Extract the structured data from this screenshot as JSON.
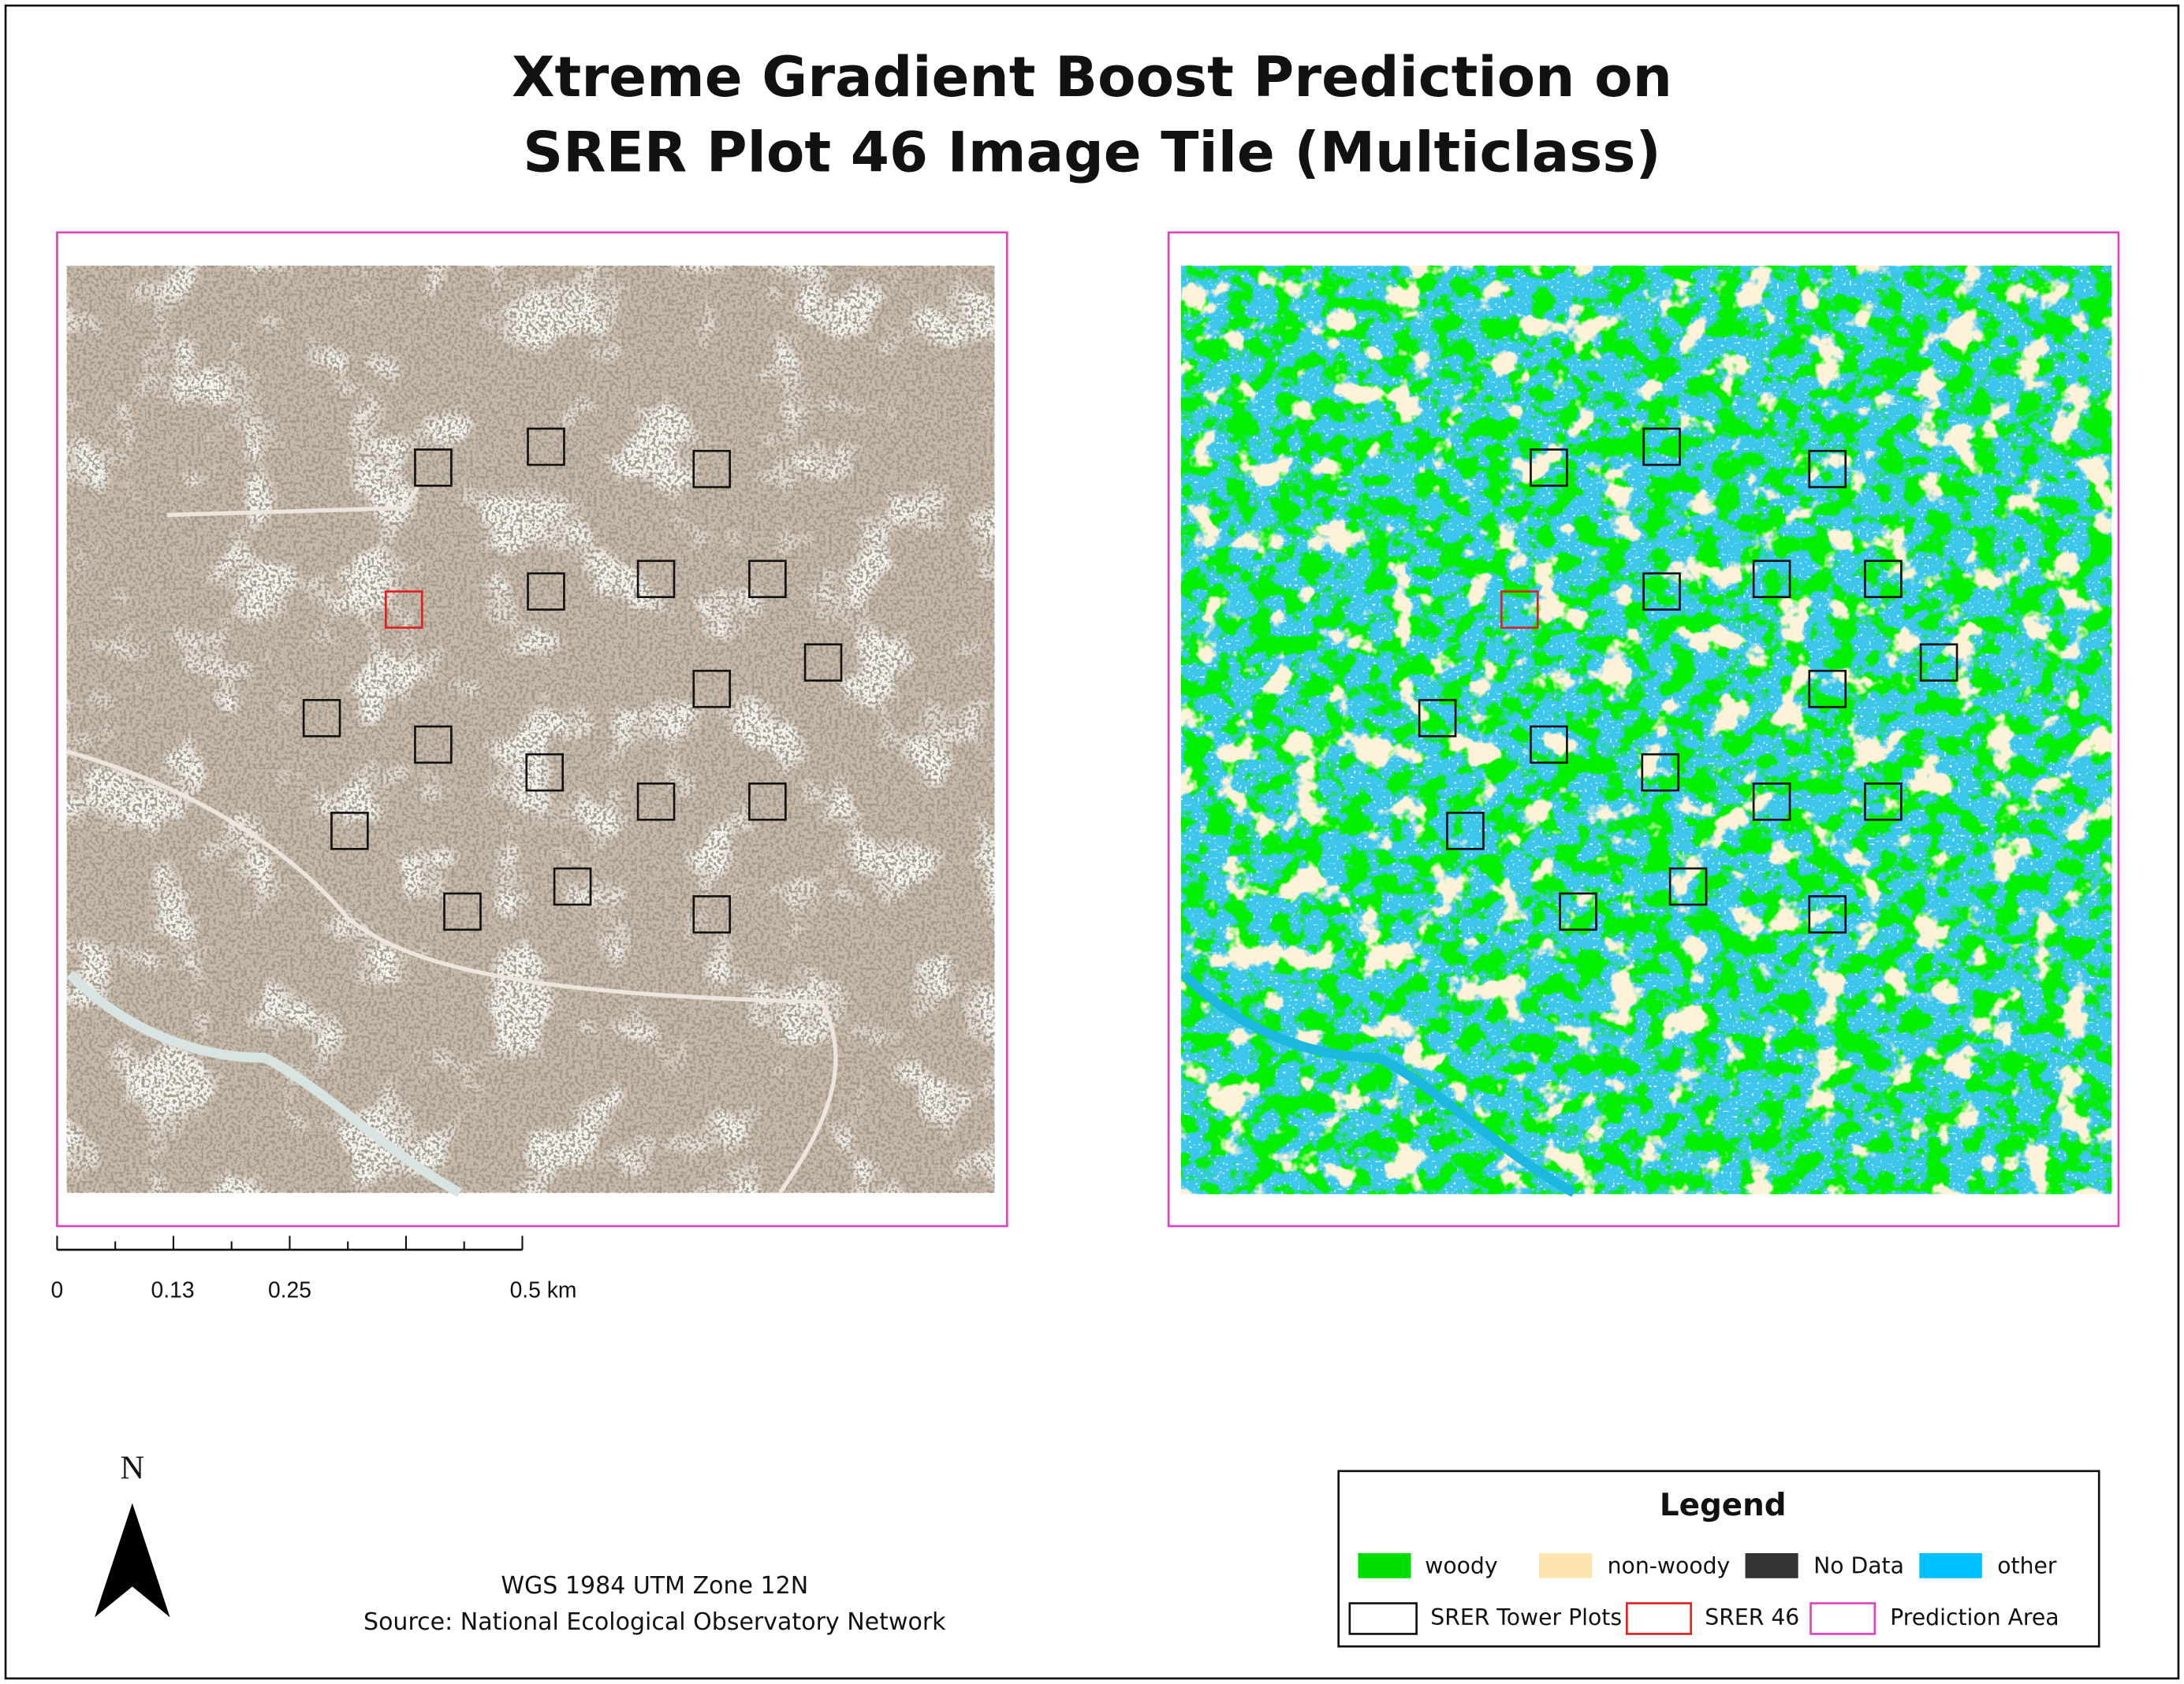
{
  "title": [
    "Xtreme Gradient Boost Prediction on",
    "SRER Plot 46 Image Tile (Multiclass)"
  ],
  "scale_bar": {
    "labels": [
      "0",
      "0.13",
      "0.25",
      "0.5 km"
    ]
  },
  "north_arrow": {
    "label": "N"
  },
  "footnote": [
    "WGS 1984 UTM Zone 12N",
    "Source: National Ecological Observatory Network"
  ],
  "legend": {
    "title": "Legend",
    "fills": [
      {
        "label": "woody",
        "color": "#00dd00"
      },
      {
        "label": "non-woody",
        "color": "#fde5b0"
      },
      {
        "label": "No Data",
        "color": "#333333"
      },
      {
        "label": "other",
        "color": "#00bfff"
      }
    ],
    "outlines": [
      {
        "label": "SRER Tower Plots",
        "color": "#111111"
      },
      {
        "label": "SRER 46",
        "color": "#e02020"
      },
      {
        "label": "Prediction Area",
        "color": "#e040c0"
      }
    ]
  }
}
